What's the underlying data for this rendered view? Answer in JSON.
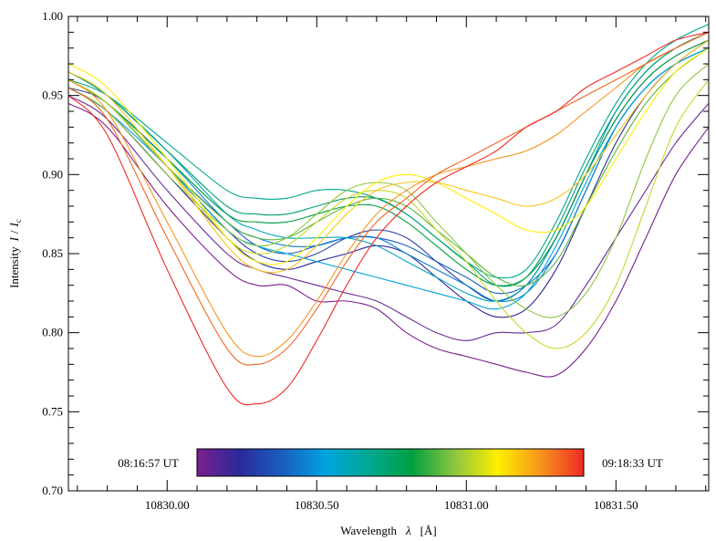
{
  "chart_data": {
    "type": "line",
    "title": "",
    "xlabel_prefix": "Wavelength",
    "xlabel_symbol": "λ",
    "xlabel_unit": "[Å]",
    "ylabel_prefix": "Intensity",
    "ylabel_I": "I",
    "ylabel_slash": "/",
    "ylabel_Ic_main": "I",
    "ylabel_Ic_sub": "c",
    "xlim": [
      10829.67,
      10831.81
    ],
    "ylim": [
      0.7,
      1.0
    ],
    "x_ticks": [
      {
        "value": 10830.0,
        "label": "10830.00"
      },
      {
        "value": 10830.5,
        "label": "10830.50"
      },
      {
        "value": 10831.0,
        "label": "10831.00"
      },
      {
        "value": 10831.5,
        "label": "10831.50"
      }
    ],
    "y_ticks": [
      {
        "value": 0.7,
        "label": "0.70"
      },
      {
        "value": 0.75,
        "label": "0.75"
      },
      {
        "value": 0.8,
        "label": "0.80"
      },
      {
        "value": 0.85,
        "label": "0.85"
      },
      {
        "value": 0.9,
        "label": "0.90"
      },
      {
        "value": 0.95,
        "label": "0.95"
      },
      {
        "value": 1.0,
        "label": "1.00"
      }
    ],
    "grid": false,
    "colorbar": {
      "start_label": "08:16:57 UT",
      "end_label": "09:18:33 UT",
      "colors": [
        "#7b1f8f",
        "#2a2a9a",
        "#1a5fc0",
        "#00a4e0",
        "#00a890",
        "#00a040",
        "#8ec63f",
        "#ffee00",
        "#f7941d",
        "#ee2a24"
      ]
    },
    "x": [
      10829.67,
      10829.8,
      10830.0,
      10830.2,
      10830.3,
      10830.4,
      10830.5,
      10830.6,
      10830.7,
      10830.8,
      10830.9,
      10831.0,
      10831.1,
      10831.2,
      10831.3,
      10831.4,
      10831.5,
      10831.6,
      10831.7,
      10831.81
    ],
    "series": [
      {
        "color": "#7b1f8f",
        "values": [
          0.945,
          0.93,
          0.88,
          0.84,
          0.83,
          0.83,
          0.82,
          0.82,
          0.815,
          0.8,
          0.79,
          0.785,
          0.78,
          0.775,
          0.773,
          0.79,
          0.82,
          0.86,
          0.9,
          0.93
        ]
      },
      {
        "color": "#6a2a95",
        "values": [
          0.95,
          0.935,
          0.89,
          0.85,
          0.84,
          0.835,
          0.83,
          0.825,
          0.82,
          0.81,
          0.8,
          0.795,
          0.8,
          0.8,
          0.805,
          0.83,
          0.86,
          0.89,
          0.92,
          0.945
        ]
      },
      {
        "color": "#2a2a9a",
        "values": [
          0.955,
          0.94,
          0.9,
          0.86,
          0.845,
          0.84,
          0.845,
          0.85,
          0.855,
          0.85,
          0.835,
          0.82,
          0.81,
          0.815,
          0.84,
          0.88,
          0.92,
          0.95,
          0.97,
          0.985
        ]
      },
      {
        "color": "#2a3fa8",
        "values": [
          0.955,
          0.945,
          0.905,
          0.865,
          0.85,
          0.845,
          0.85,
          0.86,
          0.865,
          0.86,
          0.845,
          0.83,
          0.82,
          0.83,
          0.86,
          0.9,
          0.935,
          0.96,
          0.975,
          0.985
        ]
      },
      {
        "color": "#1a5fc0",
        "values": [
          0.96,
          0.945,
          0.905,
          0.87,
          0.855,
          0.85,
          0.855,
          0.86,
          0.86,
          0.855,
          0.845,
          0.835,
          0.825,
          0.83,
          0.85,
          0.89,
          0.93,
          0.955,
          0.97,
          0.98
        ]
      },
      {
        "color": "#0a7fd0",
        "values": [
          0.96,
          0.945,
          0.91,
          0.87,
          0.86,
          0.855,
          0.855,
          0.86,
          0.86,
          0.85,
          0.84,
          0.83,
          0.82,
          0.825,
          0.85,
          0.89,
          0.93,
          0.955,
          0.97,
          0.98
        ]
      },
      {
        "color": "#00a4e0",
        "values": [
          0.955,
          0.94,
          0.905,
          0.865,
          0.855,
          0.85,
          0.845,
          0.84,
          0.835,
          0.83,
          0.825,
          0.82,
          0.815,
          0.825,
          0.855,
          0.895,
          0.93,
          0.955,
          0.97,
          0.98
        ]
      },
      {
        "color": "#00a4c0",
        "values": [
          0.965,
          0.95,
          0.915,
          0.875,
          0.865,
          0.86,
          0.86,
          0.86,
          0.855,
          0.845,
          0.835,
          0.825,
          0.82,
          0.83,
          0.86,
          0.9,
          0.94,
          0.965,
          0.98,
          0.99
        ]
      },
      {
        "color": "#00a890",
        "values": [
          0.96,
          0.95,
          0.92,
          0.89,
          0.885,
          0.885,
          0.89,
          0.89,
          0.885,
          0.875,
          0.86,
          0.845,
          0.835,
          0.84,
          0.87,
          0.91,
          0.945,
          0.97,
          0.985,
          0.995
        ]
      },
      {
        "color": "#00a070",
        "values": [
          0.965,
          0.95,
          0.915,
          0.88,
          0.875,
          0.875,
          0.88,
          0.885,
          0.885,
          0.875,
          0.86,
          0.845,
          0.83,
          0.835,
          0.865,
          0.905,
          0.94,
          0.965,
          0.98,
          0.99
        ]
      },
      {
        "color": "#00a040",
        "values": [
          0.96,
          0.945,
          0.91,
          0.875,
          0.87,
          0.87,
          0.875,
          0.88,
          0.88,
          0.87,
          0.855,
          0.84,
          0.83,
          0.835,
          0.86,
          0.9,
          0.935,
          0.96,
          0.975,
          0.985
        ]
      },
      {
        "color": "#5ab540",
        "values": [
          0.96,
          0.945,
          0.905,
          0.87,
          0.86,
          0.86,
          0.87,
          0.88,
          0.885,
          0.88,
          0.865,
          0.85,
          0.835,
          0.83,
          0.845,
          0.88,
          0.915,
          0.945,
          0.965,
          0.98
        ]
      },
      {
        "color": "#8ec63f",
        "values": [
          0.955,
          0.94,
          0.9,
          0.865,
          0.855,
          0.86,
          0.875,
          0.89,
          0.895,
          0.89,
          0.87,
          0.85,
          0.83,
          0.815,
          0.81,
          0.825,
          0.86,
          0.91,
          0.95,
          0.97
        ]
      },
      {
        "color": "#c8d62a",
        "values": [
          0.96,
          0.945,
          0.905,
          0.86,
          0.85,
          0.855,
          0.87,
          0.885,
          0.89,
          0.885,
          0.865,
          0.845,
          0.82,
          0.8,
          0.79,
          0.8,
          0.83,
          0.88,
          0.93,
          0.96
        ]
      },
      {
        "color": "#ffee00",
        "values": [
          0.97,
          0.955,
          0.91,
          0.86,
          0.845,
          0.845,
          0.86,
          0.88,
          0.895,
          0.9,
          0.895,
          0.885,
          0.875,
          0.865,
          0.865,
          0.88,
          0.91,
          0.94,
          0.965,
          0.98
        ]
      },
      {
        "color": "#fcc419",
        "values": [
          0.965,
          0.95,
          0.905,
          0.855,
          0.84,
          0.84,
          0.855,
          0.875,
          0.89,
          0.895,
          0.895,
          0.89,
          0.885,
          0.88,
          0.885,
          0.9,
          0.925,
          0.95,
          0.97,
          0.985
        ]
      },
      {
        "color": "#f7941d",
        "values": [
          0.96,
          0.94,
          0.87,
          0.8,
          0.785,
          0.795,
          0.82,
          0.85,
          0.875,
          0.89,
          0.9,
          0.905,
          0.91,
          0.915,
          0.925,
          0.94,
          0.955,
          0.97,
          0.98,
          0.99
        ]
      },
      {
        "color": "#f26522",
        "values": [
          0.955,
          0.935,
          0.86,
          0.79,
          0.78,
          0.79,
          0.815,
          0.845,
          0.87,
          0.885,
          0.9,
          0.91,
          0.92,
          0.93,
          0.94,
          0.95,
          0.96,
          0.97,
          0.98,
          0.99
        ]
      },
      {
        "color": "#ee2a24",
        "values": [
          0.95,
          0.925,
          0.84,
          0.765,
          0.755,
          0.765,
          0.795,
          0.83,
          0.86,
          0.88,
          0.895,
          0.905,
          0.915,
          0.93,
          0.94,
          0.955,
          0.965,
          0.975,
          0.985,
          0.99
        ]
      }
    ]
  }
}
